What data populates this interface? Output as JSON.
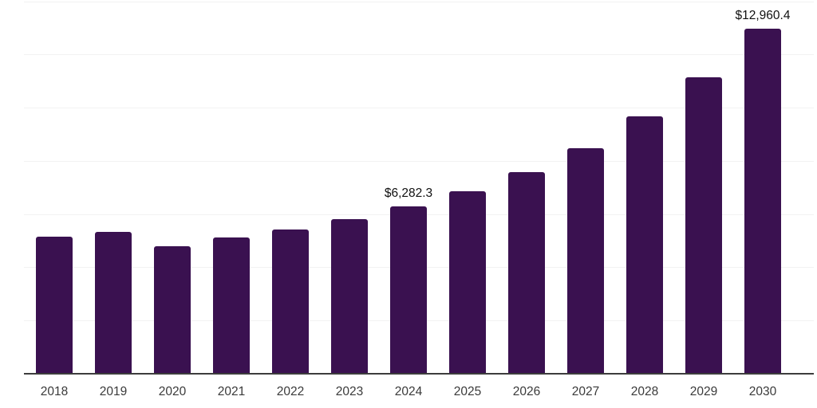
{
  "chart_data": {
    "type": "bar",
    "title": "",
    "xlabel": "",
    "ylabel": "",
    "categories": [
      "2018",
      "2019",
      "2020",
      "2021",
      "2022",
      "2023",
      "2024",
      "2025",
      "2026",
      "2027",
      "2028",
      "2029",
      "2030"
    ],
    "values": [
      5160,
      5345,
      4800,
      5130,
      5435,
      5800,
      6282.3,
      6870,
      7590,
      8490,
      9660,
      11150,
      12960.4
    ],
    "data_labels": [
      {
        "category": "2024",
        "text": "$6,282.3"
      },
      {
        "category": "2030",
        "text": "$12,960.4"
      }
    ],
    "ylim": [
      0,
      14000
    ],
    "grid": {
      "visible": true,
      "step": 2000,
      "orientation": "horizontal"
    },
    "legend_position": "none",
    "colors": {
      "bar": "#3a1150",
      "gridline": "#f2f2f2",
      "axis": "#3d3d3d",
      "tick_label": "#3a3a3a",
      "value_label": "#111111",
      "background": "#ffffff"
    }
  }
}
